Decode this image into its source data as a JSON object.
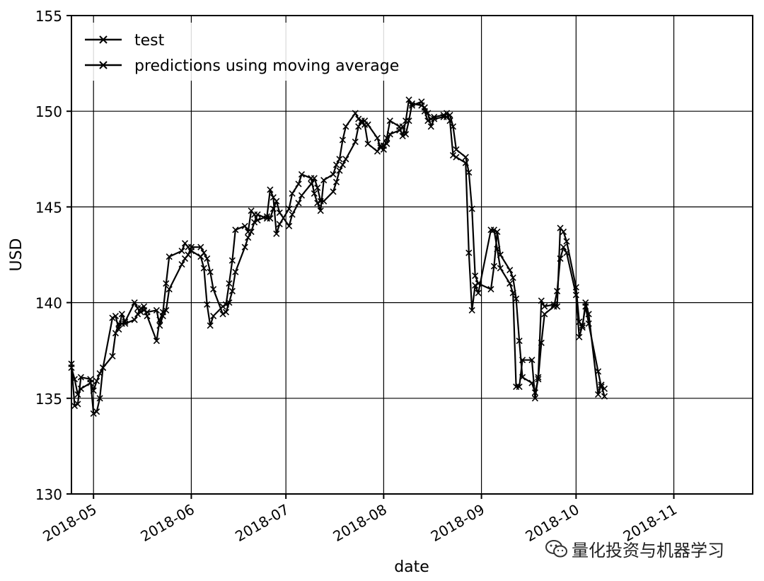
{
  "chart_data": {
    "type": "line",
    "xlabel": "date",
    "ylabel": "USD",
    "ylim": [
      130,
      155
    ],
    "xlim": [
      "2018-04-24",
      "2018-11-26"
    ],
    "y_ticks": [
      130,
      135,
      140,
      145,
      150,
      155
    ],
    "x_ticks": [
      "2018-05-01",
      "2018-06-01",
      "2018-07-01",
      "2018-08-01",
      "2018-09-01",
      "2018-10-01",
      "2018-11-01"
    ],
    "x_tick_labels": [
      "2018-05",
      "2018-06",
      "2018-07",
      "2018-08",
      "2018-09",
      "2018-10",
      "2018-11"
    ],
    "grid": true,
    "legend_position": "top-left",
    "series": [
      {
        "name": "test",
        "marker": "x",
        "color": "#000000",
        "points": [
          [
            "2018-04-24",
            136.8
          ],
          [
            "2018-04-25",
            134.6
          ],
          [
            "2018-04-26",
            134.7
          ],
          [
            "2018-04-27",
            136.1
          ],
          [
            "2018-04-30",
            136.0
          ],
          [
            "2018-05-01",
            134.2
          ],
          [
            "2018-05-02",
            134.3
          ],
          [
            "2018-05-03",
            135.0
          ],
          [
            "2018-05-04",
            136.6
          ],
          [
            "2018-05-07",
            139.2
          ],
          [
            "2018-05-08",
            139.3
          ],
          [
            "2018-05-09",
            138.6
          ],
          [
            "2018-05-10",
            139.4
          ],
          [
            "2018-05-11",
            139.0
          ],
          [
            "2018-05-14",
            140.0
          ],
          [
            "2018-05-15",
            139.7
          ],
          [
            "2018-05-16",
            139.5
          ],
          [
            "2018-05-17",
            139.8
          ],
          [
            "2018-05-18",
            139.3
          ],
          [
            "2018-05-21",
            138.0
          ],
          [
            "2018-05-22",
            139.1
          ],
          [
            "2018-05-23",
            139.5
          ],
          [
            "2018-05-24",
            141.0
          ],
          [
            "2018-05-25",
            142.4
          ],
          [
            "2018-05-29",
            142.7
          ],
          [
            "2018-05-30",
            143.1
          ],
          [
            "2018-05-31",
            142.9
          ],
          [
            "2018-06-01",
            142.7
          ],
          [
            "2018-06-04",
            142.4
          ],
          [
            "2018-06-05",
            141.8
          ],
          [
            "2018-06-06",
            139.9
          ],
          [
            "2018-06-07",
            138.8
          ],
          [
            "2018-06-08",
            139.3
          ],
          [
            "2018-06-11",
            139.8
          ],
          [
            "2018-06-12",
            139.9
          ],
          [
            "2018-06-13",
            141.0
          ],
          [
            "2018-06-14",
            142.2
          ],
          [
            "2018-06-15",
            143.8
          ],
          [
            "2018-06-18",
            144.0
          ],
          [
            "2018-06-19",
            143.7
          ],
          [
            "2018-06-20",
            144.8
          ],
          [
            "2018-06-21",
            144.6
          ],
          [
            "2018-06-22",
            144.3
          ],
          [
            "2018-06-25",
            144.5
          ],
          [
            "2018-06-26",
            145.9
          ],
          [
            "2018-06-27",
            145.5
          ],
          [
            "2018-06-28",
            143.6
          ],
          [
            "2018-06-29",
            144.1
          ],
          [
            "2018-07-02",
            144.9
          ],
          [
            "2018-07-03",
            145.7
          ],
          [
            "2018-07-05",
            146.2
          ],
          [
            "2018-07-06",
            146.7
          ],
          [
            "2018-07-09",
            146.5
          ],
          [
            "2018-07-10",
            145.7
          ],
          [
            "2018-07-11",
            145.2
          ],
          [
            "2018-07-12",
            144.8
          ],
          [
            "2018-07-13",
            146.4
          ],
          [
            "2018-07-16",
            146.7
          ],
          [
            "2018-07-17",
            147.2
          ],
          [
            "2018-07-18",
            147.5
          ],
          [
            "2018-07-19",
            148.5
          ],
          [
            "2018-07-20",
            149.2
          ],
          [
            "2018-07-23",
            149.9
          ],
          [
            "2018-07-24",
            149.6
          ],
          [
            "2018-07-25",
            149.4
          ],
          [
            "2018-07-26",
            149.3
          ],
          [
            "2018-07-27",
            148.3
          ],
          [
            "2018-07-30",
            147.9
          ],
          [
            "2018-07-31",
            148.2
          ],
          [
            "2018-08-01",
            148.0
          ],
          [
            "2018-08-02",
            148.6
          ],
          [
            "2018-08-03",
            149.5
          ],
          [
            "2018-08-06",
            149.2
          ],
          [
            "2018-08-07",
            148.7
          ],
          [
            "2018-08-08",
            149.5
          ],
          [
            "2018-08-09",
            150.6
          ],
          [
            "2018-08-10",
            150.3
          ],
          [
            "2018-08-13",
            150.5
          ],
          [
            "2018-08-14",
            150.0
          ],
          [
            "2018-08-15",
            149.5
          ],
          [
            "2018-08-16",
            149.6
          ],
          [
            "2018-08-17",
            149.7
          ],
          [
            "2018-08-20",
            149.8
          ],
          [
            "2018-08-21",
            149.9
          ],
          [
            "2018-08-22",
            149.5
          ],
          [
            "2018-08-23",
            147.7
          ],
          [
            "2018-08-24",
            147.6
          ],
          [
            "2018-08-27",
            147.3
          ],
          [
            "2018-08-28",
            142.6
          ],
          [
            "2018-08-29",
            139.6
          ],
          [
            "2018-08-30",
            140.9
          ],
          [
            "2018-08-31",
            140.5
          ],
          [
            "2018-09-04",
            143.8
          ],
          [
            "2018-09-05",
            143.8
          ],
          [
            "2018-09-06",
            142.8
          ],
          [
            "2018-09-07",
            141.8
          ],
          [
            "2018-09-10",
            141.0
          ],
          [
            "2018-09-11",
            140.5
          ],
          [
            "2018-09-12",
            135.6
          ],
          [
            "2018-09-13",
            135.6
          ],
          [
            "2018-09-14",
            137.0
          ],
          [
            "2018-09-17",
            137.0
          ],
          [
            "2018-09-18",
            135.0
          ],
          [
            "2018-09-19",
            136.1
          ],
          [
            "2018-09-20",
            140.1
          ],
          [
            "2018-09-21",
            139.8
          ],
          [
            "2018-09-24",
            139.9
          ],
          [
            "2018-09-25",
            139.8
          ],
          [
            "2018-09-26",
            143.9
          ],
          [
            "2018-09-27",
            143.7
          ],
          [
            "2018-09-28",
            143.2
          ],
          [
            "2018-10-01",
            140.8
          ],
          [
            "2018-10-02",
            139.0
          ],
          [
            "2018-10-03",
            138.7
          ],
          [
            "2018-10-04",
            140.0
          ],
          [
            "2018-10-05",
            139.4
          ],
          [
            "2018-10-08",
            135.2
          ],
          [
            "2018-10-09",
            135.7
          ],
          [
            "2018-10-10",
            135.1
          ]
        ]
      },
      {
        "name": "predictions using moving average",
        "marker": "x",
        "color": "#000000",
        "points": [
          [
            "2018-04-24",
            136.6
          ],
          [
            "2018-04-25",
            136.0
          ],
          [
            "2018-04-26",
            135.2
          ],
          [
            "2018-04-27",
            135.5
          ],
          [
            "2018-04-30",
            135.8
          ],
          [
            "2018-05-01",
            135.4
          ],
          [
            "2018-05-02",
            135.9
          ],
          [
            "2018-05-03",
            136.3
          ],
          [
            "2018-05-04",
            136.6
          ],
          [
            "2018-05-07",
            137.2
          ],
          [
            "2018-05-08",
            138.4
          ],
          [
            "2018-05-09",
            138.9
          ],
          [
            "2018-05-10",
            138.9
          ],
          [
            "2018-05-11",
            138.9
          ],
          [
            "2018-05-14",
            139.1
          ],
          [
            "2018-05-15",
            139.4
          ],
          [
            "2018-05-16",
            139.7
          ],
          [
            "2018-05-17",
            139.6
          ],
          [
            "2018-05-18",
            139.5
          ],
          [
            "2018-05-21",
            139.6
          ],
          [
            "2018-05-22",
            138.8
          ],
          [
            "2018-05-23",
            139.3
          ],
          [
            "2018-05-24",
            139.6
          ],
          [
            "2018-05-25",
            140.7
          ],
          [
            "2018-05-29",
            142.0
          ],
          [
            "2018-05-30",
            142.3
          ],
          [
            "2018-05-31",
            142.5
          ],
          [
            "2018-06-01",
            142.9
          ],
          [
            "2018-06-04",
            142.9
          ],
          [
            "2018-06-05",
            142.6
          ],
          [
            "2018-06-06",
            142.3
          ],
          [
            "2018-06-07",
            141.6
          ],
          [
            "2018-06-08",
            140.7
          ],
          [
            "2018-06-11",
            139.4
          ],
          [
            "2018-06-12",
            139.5
          ],
          [
            "2018-06-13",
            140.0
          ],
          [
            "2018-06-14",
            140.6
          ],
          [
            "2018-06-15",
            141.6
          ],
          [
            "2018-06-18",
            142.9
          ],
          [
            "2018-06-19",
            143.4
          ],
          [
            "2018-06-20",
            143.7
          ],
          [
            "2018-06-21",
            144.2
          ],
          [
            "2018-06-22",
            144.6
          ],
          [
            "2018-06-25",
            144.4
          ],
          [
            "2018-06-26",
            144.4
          ],
          [
            "2018-06-27",
            144.9
          ],
          [
            "2018-06-28",
            145.3
          ],
          [
            "2018-06-29",
            144.7
          ],
          [
            "2018-07-02",
            144.0
          ],
          [
            "2018-07-03",
            144.6
          ],
          [
            "2018-07-05",
            145.2
          ],
          [
            "2018-07-06",
            145.6
          ],
          [
            "2018-07-09",
            146.2
          ],
          [
            "2018-07-10",
            146.5
          ],
          [
            "2018-07-11",
            146.0
          ],
          [
            "2018-07-12",
            145.3
          ],
          [
            "2018-07-13",
            145.3
          ],
          [
            "2018-07-16",
            145.8
          ],
          [
            "2018-07-17",
            146.3
          ],
          [
            "2018-07-18",
            146.9
          ],
          [
            "2018-07-19",
            147.2
          ],
          [
            "2018-07-20",
            147.5
          ],
          [
            "2018-07-23",
            148.4
          ],
          [
            "2018-07-24",
            149.2
          ],
          [
            "2018-07-25",
            149.5
          ],
          [
            "2018-07-26",
            149.5
          ],
          [
            "2018-07-27",
            149.3
          ],
          [
            "2018-07-30",
            148.6
          ],
          [
            "2018-07-31",
            148.1
          ],
          [
            "2018-08-01",
            148.2
          ],
          [
            "2018-08-02",
            148.3
          ],
          [
            "2018-08-03",
            148.8
          ],
          [
            "2018-08-06",
            149.0
          ],
          [
            "2018-08-07",
            149.2
          ],
          [
            "2018-08-08",
            148.8
          ],
          [
            "2018-08-09",
            149.5
          ],
          [
            "2018-08-10",
            150.4
          ],
          [
            "2018-08-13",
            150.3
          ],
          [
            "2018-08-14",
            150.2
          ],
          [
            "2018-08-15",
            149.9
          ],
          [
            "2018-08-16",
            149.2
          ],
          [
            "2018-08-17",
            149.6
          ],
          [
            "2018-08-20",
            149.7
          ],
          [
            "2018-08-21",
            149.7
          ],
          [
            "2018-08-22",
            149.8
          ],
          [
            "2018-08-23",
            149.2
          ],
          [
            "2018-08-24",
            148.0
          ],
          [
            "2018-08-27",
            147.6
          ],
          [
            "2018-08-28",
            146.8
          ],
          [
            "2018-08-29",
            144.9
          ],
          [
            "2018-08-30",
            141.4
          ],
          [
            "2018-08-31",
            141.0
          ],
          [
            "2018-09-04",
            140.7
          ],
          [
            "2018-09-05",
            141.9
          ],
          [
            "2018-09-06",
            143.7
          ],
          [
            "2018-09-07",
            142.5
          ],
          [
            "2018-09-10",
            141.7
          ],
          [
            "2018-09-11",
            141.3
          ],
          [
            "2018-09-12",
            140.2
          ],
          [
            "2018-09-13",
            138.0
          ],
          [
            "2018-09-14",
            136.1
          ],
          [
            "2018-09-17",
            135.8
          ],
          [
            "2018-09-18",
            135.3
          ],
          [
            "2018-09-19",
            136.0
          ],
          [
            "2018-09-20",
            137.9
          ],
          [
            "2018-09-21",
            139.4
          ],
          [
            "2018-09-24",
            139.8
          ],
          [
            "2018-09-25",
            140.6
          ],
          [
            "2018-09-26",
            142.3
          ],
          [
            "2018-09-27",
            142.9
          ],
          [
            "2018-09-28",
            142.6
          ],
          [
            "2018-10-01",
            140.4
          ],
          [
            "2018-10-02",
            138.2
          ],
          [
            "2018-10-03",
            138.8
          ],
          [
            "2018-10-04",
            139.8
          ],
          [
            "2018-10-05",
            138.9
          ],
          [
            "2018-10-08",
            136.4
          ],
          [
            "2018-10-09",
            135.6
          ],
          [
            "2018-10-10",
            135.5
          ]
        ]
      }
    ]
  },
  "watermark": {
    "text": "量化投资与机器学习",
    "icon": "wechat-icon"
  }
}
